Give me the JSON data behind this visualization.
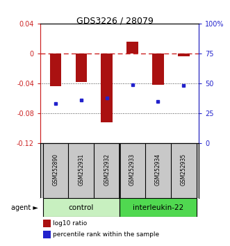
{
  "title": "GDS3226 / 28079",
  "samples": [
    "GSM252890",
    "GSM252931",
    "GSM252932",
    "GSM252933",
    "GSM252934",
    "GSM252935"
  ],
  "log10_ratio": [
    -0.044,
    -0.038,
    -0.092,
    0.016,
    -0.042,
    -0.004
  ],
  "percentile_rank": [
    33,
    36,
    38,
    49,
    35,
    48
  ],
  "groups": [
    {
      "label": "control",
      "color_light": "#c8f0c0",
      "color_dark": "#c8f0c0",
      "indices": [
        0,
        1,
        2
      ]
    },
    {
      "label": "interleukin-22",
      "color_light": "#50d850",
      "color_dark": "#50d850",
      "indices": [
        3,
        4,
        5
      ]
    }
  ],
  "bar_color": "#aa1111",
  "dot_color": "#2222cc",
  "ylim_left": [
    -0.12,
    0.04
  ],
  "ylim_right": [
    0,
    100
  ],
  "yticks_left": [
    -0.12,
    -0.08,
    -0.04,
    0.0,
    0.04
  ],
  "yticks_right": [
    0,
    25,
    50,
    75,
    100
  ],
  "zero_line_color": "#cc2222",
  "grid_line_color": "#444444",
  "background_color": "#ffffff",
  "left_axis_color": "#cc2222",
  "right_axis_color": "#2222cc",
  "bar_width": 0.45,
  "label_bg": "#c8c8c8",
  "legend_red_label": "log10 ratio",
  "legend_blue_label": "percentile rank within the sample",
  "agent_label": "agent"
}
